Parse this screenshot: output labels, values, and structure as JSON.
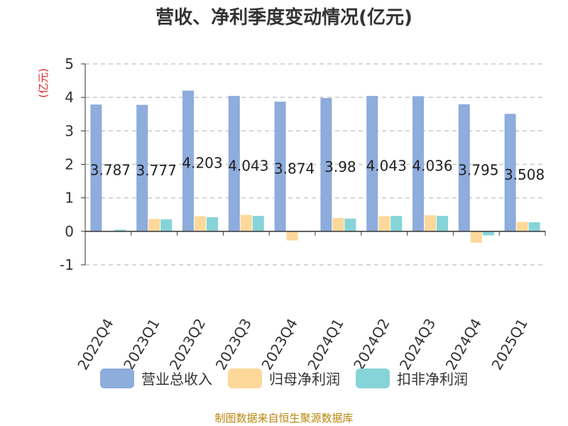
{
  "chart_data": {
    "type": "bar",
    "title": "营收、净利季度变动情况(亿元)",
    "ylabel": "(亿元)",
    "xlabel": "",
    "ylim": [
      -1,
      5
    ],
    "yticks": [
      -1,
      0,
      1,
      2,
      3,
      4,
      5
    ],
    "grid": true,
    "legend_position": "bottom",
    "categories": [
      "2022Q4",
      "2023Q1",
      "2023Q2",
      "2023Q3",
      "2023Q4",
      "2024Q1",
      "2024Q2",
      "2024Q3",
      "2024Q4",
      "2025Q1"
    ],
    "series": [
      {
        "name": "营业总收入",
        "color": "#8eacdc",
        "values": [
          3.787,
          3.777,
          4.203,
          4.043,
          3.874,
          3.98,
          4.043,
          4.036,
          3.795,
          3.508
        ],
        "labels": [
          "3.787",
          "3.777",
          "4.203",
          "4.043",
          "3.874",
          "3.98",
          "4.043",
          "4.036",
          "3.795",
          "3.508"
        ]
      },
      {
        "name": "归母净利润",
        "color": "#fcd89a",
        "values": [
          0.0,
          0.37,
          0.45,
          0.49,
          -0.27,
          0.4,
          0.45,
          0.48,
          -0.34,
          0.28
        ]
      },
      {
        "name": "扣非净利润",
        "color": "#86d4d8",
        "values": [
          0.05,
          0.36,
          0.42,
          0.46,
          -0.02,
          0.38,
          0.46,
          0.46,
          -0.12,
          0.27
        ]
      }
    ]
  },
  "source_text": "制图数据来自恒生聚源数据库"
}
